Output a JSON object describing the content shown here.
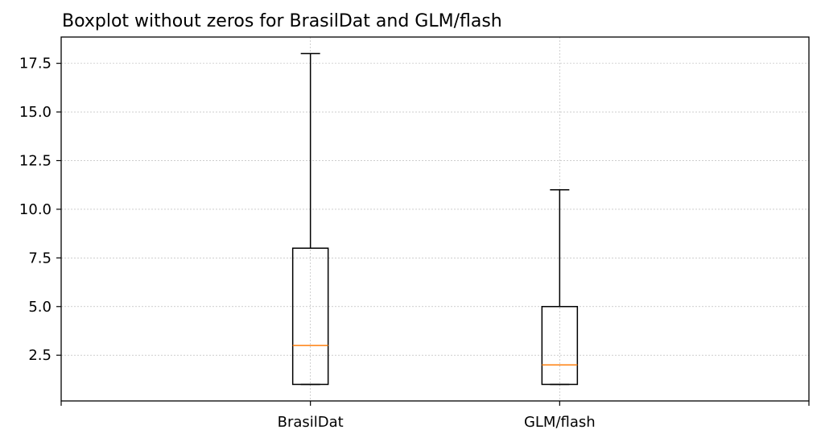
{
  "chart_data": {
    "type": "boxplot",
    "title": "Boxplot without zeros for BrasilDat and GLM/flash",
    "xlabel": "",
    "ylabel": "",
    "grid": true,
    "categories": [
      "",
      "BrasilDat",
      "GLM/flash",
      ""
    ],
    "boxes": [
      {
        "category": "BrasilDat",
        "whisker_low": 1,
        "q1": 1,
        "median": 3,
        "q3": 8,
        "whisker_high": 18
      },
      {
        "category": "GLM/flash",
        "whisker_low": 1,
        "q1": 1,
        "median": 2,
        "q3": 5,
        "whisker_high": 11
      }
    ],
    "yticks": [
      "2.5",
      "5.0",
      "7.5",
      "10.0",
      "12.5",
      "15.0",
      "17.5"
    ],
    "ylim": [
      0.15,
      18.85
    ],
    "colors": {
      "box": "#000000",
      "median": "#ff7f0e",
      "grid": "#b0b0b0"
    }
  }
}
